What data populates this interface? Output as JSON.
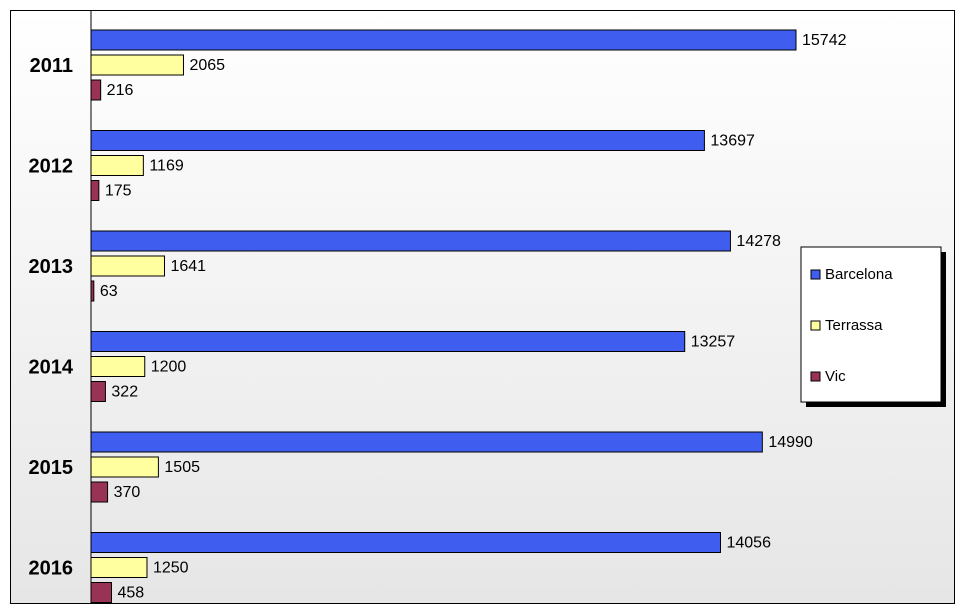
{
  "chart_data": {
    "type": "bar",
    "orientation": "horizontal",
    "categories": [
      "2011",
      "2012",
      "2013",
      "2014",
      "2015",
      "2016"
    ],
    "series": [
      {
        "name": "Barcelona",
        "color": "#3f5ef0",
        "values": [
          15742,
          13697,
          14278,
          13257,
          14990,
          14056
        ]
      },
      {
        "name": "Terrassa",
        "color": "#ffffa0",
        "values": [
          2065,
          1169,
          1641,
          1200,
          1505,
          1250
        ]
      },
      {
        "name": "Vic",
        "color": "#993355",
        "values": [
          216,
          175,
          63,
          322,
          370,
          458
        ]
      }
    ],
    "xlim": [
      0,
      16000
    ],
    "grid": false,
    "legend_position": "right",
    "title": "",
    "xlabel": "",
    "ylabel": ""
  }
}
